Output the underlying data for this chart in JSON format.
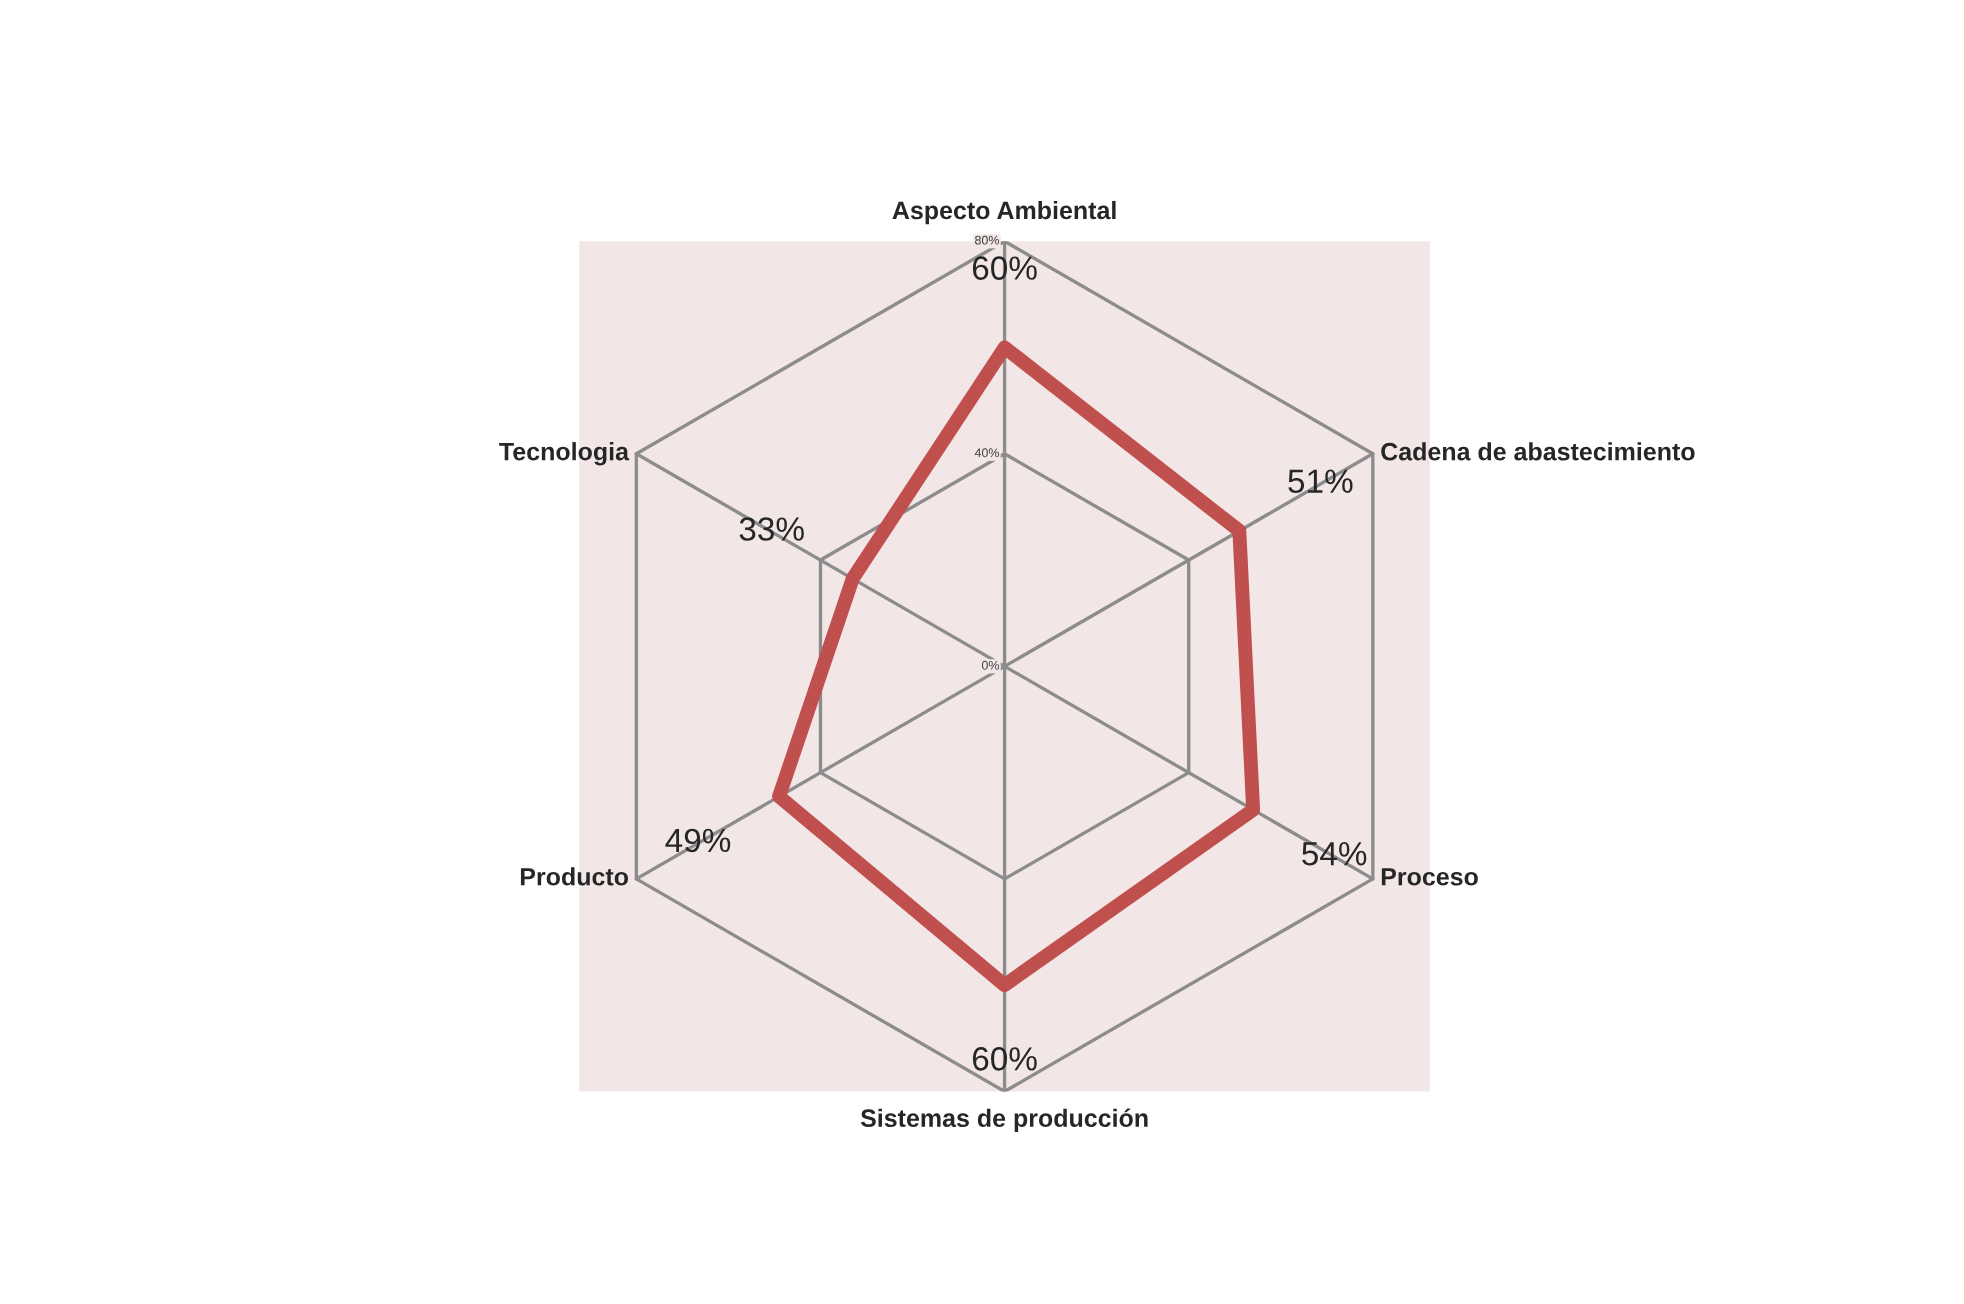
{
  "chart_data": {
    "type": "radar",
    "categories": [
      "Aspecto Ambiental",
      "Cadena de abastecimiento",
      "Proceso",
      "Sistemas de producción",
      "Producto",
      "Tecnologia"
    ],
    "series": [
      {
        "color": "#c0504d",
        "values": [
          60,
          51,
          54,
          60,
          49,
          33
        ],
        "value_labels": [
          "60%",
          "51%",
          "54%",
          "60%",
          "49%",
          "33%"
        ]
      }
    ],
    "ylim": [
      0,
      80
    ],
    "yticks": [
      {
        "value": 0,
        "label": "0%"
      },
      {
        "value": 40,
        "label": "40%"
      },
      {
        "value": 80,
        "label": "80%"
      }
    ],
    "grid": true
  }
}
